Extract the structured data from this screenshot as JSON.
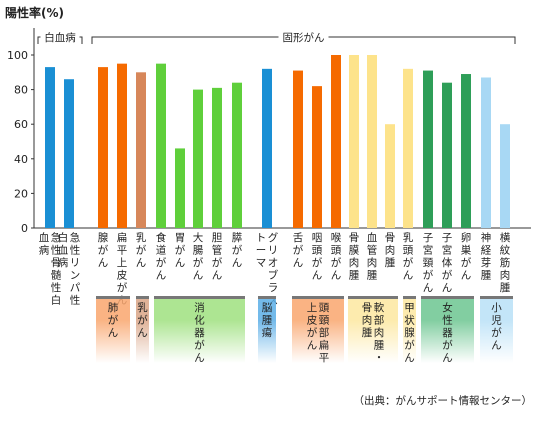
{
  "chart_data": {
    "type": "bar",
    "ylabel": "陽性率(%)",
    "ylim": [
      0,
      100
    ],
    "yticks": [
      0,
      20,
      40,
      60,
      80,
      100
    ],
    "grid": false,
    "source_note": "（出典：がんサポート情報センター）",
    "top_groups": [
      {
        "label": "白血病"
      },
      {
        "label": "固形がん"
      }
    ],
    "categories": [
      "急性骨髄性白血病",
      "急性リンパ性白血病",
      "腺がん",
      "扁平上皮がん",
      "乳がん",
      "食道がん",
      "胃がん",
      "大腸がん",
      "胆管がん",
      "膵がん",
      "グリオブラストーマ",
      "舌がん",
      "咽頭がん",
      "喉頭がん",
      "骨膜肉腫",
      "血管肉腫",
      "骨肉腫",
      "乳頭がん",
      "子宮頸がん",
      "子宮体がん",
      "卵巣がん",
      "神経芽腫",
      "横紋筋肉腫"
    ],
    "values": [
      93,
      86,
      93,
      95,
      90,
      95,
      46,
      80,
      81,
      84,
      92,
      91,
      82,
      100,
      100,
      100,
      60,
      92,
      91,
      84,
      89,
      87,
      60
    ],
    "bar_colors": [
      "#1a8fd4",
      "#1a8fd4",
      "#f56a00",
      "#f56a00",
      "#d7875a",
      "#5fcf3b",
      "#5fcf3b",
      "#5fcf3b",
      "#5fcf3b",
      "#5fcf3b",
      "#1a8fd4",
      "#f56a00",
      "#f56a00",
      "#f56a00",
      "#fde38b",
      "#fde38b",
      "#fde38b",
      "#fde38b",
      "#2e9e58",
      "#2e9e58",
      "#2e9e58",
      "#a8d8f4",
      "#a8d8f4"
    ],
    "groups": [
      {
        "label": "肺がん",
        "color": "#f9a66d"
      },
      {
        "label": "乳がん",
        "color": "#d9a586"
      },
      {
        "label": "消化器がん",
        "color": "#9fe17f"
      },
      {
        "label": "脳腫瘍",
        "color": "#5aaee6"
      },
      {
        "label": "頭頸部扁平上皮がん",
        "color": "#f9a66d"
      },
      {
        "label": "軟部肉腫・骨肉腫",
        "color": "#fde8a0"
      },
      {
        "label": "甲状腺がん",
        "color": "#fde8a0"
      },
      {
        "label": "女性器がん",
        "color": "#6cc690"
      },
      {
        "label": "小児がん",
        "color": "#b8e0f7"
      }
    ]
  }
}
